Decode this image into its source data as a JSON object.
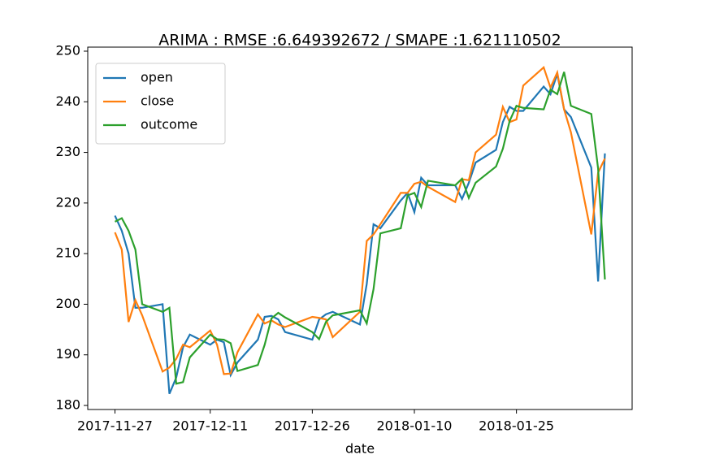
{
  "chart_data": {
    "type": "line",
    "title": "ARIMA : RMSE :6.649392672 / SMAPE :1.621110502",
    "x_label": "date",
    "x": [
      "2017-11-27",
      "2017-11-28",
      "2017-11-29",
      "2017-11-30",
      "2017-12-01",
      "2017-12-04",
      "2017-12-05",
      "2017-12-06",
      "2017-12-07",
      "2017-12-08",
      "2017-12-11",
      "2017-12-12",
      "2017-12-13",
      "2017-12-14",
      "2017-12-15",
      "2017-12-18",
      "2017-12-19",
      "2017-12-20",
      "2017-12-21",
      "2017-12-22",
      "2017-12-26",
      "2017-12-27",
      "2017-12-28",
      "2017-12-29",
      "2018-01-02",
      "2018-01-03",
      "2018-01-04",
      "2018-01-05",
      "2018-01-08",
      "2018-01-09",
      "2018-01-10",
      "2018-01-11",
      "2018-01-12",
      "2018-01-16",
      "2018-01-17",
      "2018-01-18",
      "2018-01-19",
      "2018-01-22",
      "2018-01-23",
      "2018-01-24",
      "2018-01-25",
      "2018-01-26",
      "2018-01-29",
      "2018-01-30",
      "2018-01-31",
      "2018-02-01",
      "2018-02-02",
      "2018-02-05",
      "2018-02-06",
      "2018-02-07"
    ],
    "series": [
      {
        "name": "open",
        "color": "#1f77b4",
        "values": [
          217.5,
          214.5,
          210,
          199.3,
          199.3,
          200,
          182.3,
          185.5,
          191.5,
          194,
          192,
          193,
          192.5,
          186,
          188.5,
          193,
          197.5,
          197.7,
          197,
          194.5,
          193,
          197,
          198,
          198.5,
          196,
          204,
          215.8,
          215,
          220.5,
          222,
          218.2,
          225,
          223.5,
          223.5,
          220.8,
          224,
          228,
          230.5,
          236,
          239,
          238.2,
          238.2,
          243,
          241.5,
          245.5,
          238.5,
          237,
          227,
          204.5,
          229.8
        ]
      },
      {
        "name": "close",
        "color": "#ff7f0e",
        "values": [
          214.2,
          210.8,
          196.5,
          200.8,
          197.8,
          186.7,
          187.5,
          189.2,
          192,
          191.5,
          194.8,
          192,
          186.2,
          186.3,
          190.5,
          198,
          196.2,
          196.8,
          196,
          195.5,
          197.5,
          197.3,
          197,
          193.5,
          198.5,
          212.5,
          213.8,
          215.8,
          222,
          222,
          223.8,
          224.2,
          223.2,
          220.2,
          224.7,
          224.5,
          230,
          233.5,
          239,
          236,
          236.5,
          243.2,
          246.8,
          242.8,
          245.8,
          238.5,
          234,
          213.8,
          226,
          228.8
        ]
      },
      {
        "name": "outcome",
        "color": "#2ca02c",
        "values": [
          216.3,
          217,
          214.5,
          210.8,
          200,
          198.5,
          199.3,
          184.3,
          184.6,
          189.5,
          194,
          193.1,
          193,
          192.3,
          186.8,
          188,
          192,
          197.2,
          198.3,
          197.4,
          194.5,
          193.1,
          196.5,
          197.8,
          198.8,
          196.2,
          203,
          214,
          215,
          221.5,
          222,
          219.2,
          224.4,
          223.5,
          224.8,
          221,
          224,
          227.2,
          230.7,
          236.2,
          239.2,
          238.8,
          238.5,
          242.4,
          241.5,
          245.9,
          239.2,
          237.6,
          226.8,
          204.9
        ]
      }
    ],
    "xlim": [
      "2017-11-23",
      "2018-02-11"
    ],
    "xticks": [
      "2017-11-27",
      "2017-12-11",
      "2017-12-26",
      "2018-01-10",
      "2018-01-25"
    ],
    "ylim": [
      179.2,
      250.8
    ],
    "yticks": [
      180,
      190,
      200,
      210,
      220,
      230,
      240,
      250
    ],
    "legend": "upper left"
  }
}
